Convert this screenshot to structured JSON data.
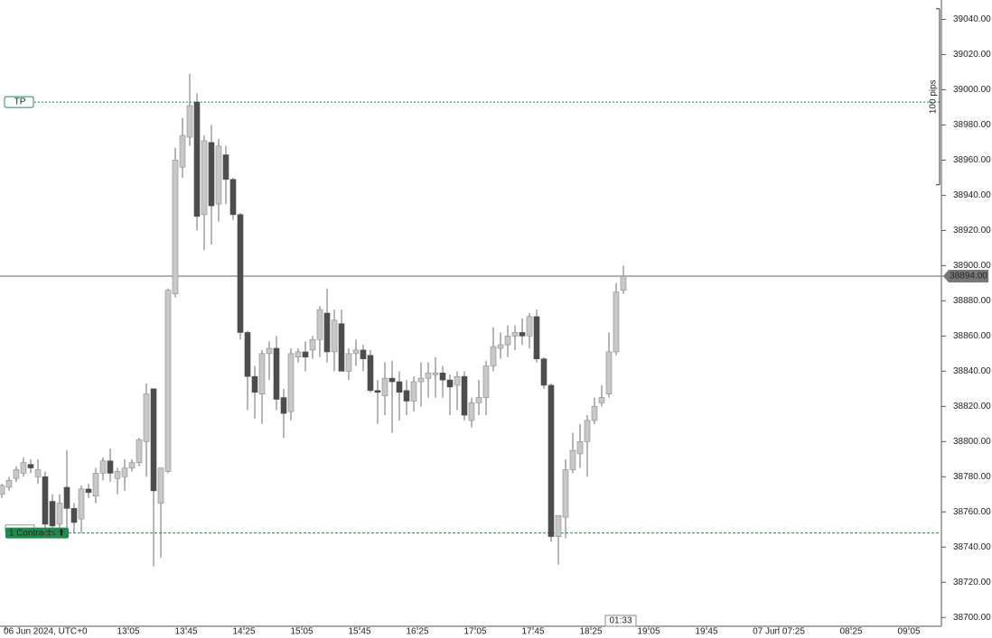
{
  "chart_data": {
    "type": "candlestick",
    "categories": [
      "06 Jun 2024, UTC+0",
      null,
      null,
      null,
      null,
      null,
      null,
      null,
      null,
      null,
      null,
      null,
      null,
      null,
      null,
      null,
      null,
      "13:05",
      null,
      null,
      null,
      null,
      null,
      null,
      null,
      "13:45",
      null,
      null,
      null,
      null,
      null,
      null,
      null,
      "14:25",
      null,
      null,
      null,
      null,
      null,
      null,
      null,
      "15:05",
      null,
      null,
      null,
      null,
      null,
      null,
      null,
      "15:45",
      null,
      null,
      null,
      null,
      null,
      null,
      null,
      "16:25",
      null,
      null,
      null,
      null,
      null,
      null,
      null,
      "17:05",
      null,
      null,
      null,
      null,
      null,
      null,
      null,
      "17:45",
      null,
      null,
      null,
      null,
      null,
      null,
      null,
      "18:25",
      null,
      null,
      null,
      null,
      null,
      null,
      null,
      "19:05",
      null,
      null,
      null,
      null,
      null,
      null,
      null,
      "19:45",
      null,
      null,
      null,
      null,
      null,
      null,
      null,
      null,
      null,
      "07 Jun 07:25",
      null,
      null,
      null,
      null,
      null,
      null,
      null,
      null,
      null,
      "08:25",
      null,
      null,
      null,
      null,
      null,
      null,
      null,
      "09:05",
      null,
      null,
      null,
      null
    ],
    "open": [
      38770,
      38774,
      38779,
      38782,
      38787,
      38780,
      38780,
      38766,
      38753,
      38774,
      38762,
      38756,
      38773,
      38769,
      38782,
      38789,
      38779,
      38780,
      38785,
      38788,
      38800,
      38830,
      38765,
      38783,
      38884,
      38956,
      38973,
      38993,
      38929,
      38970,
      38935,
      38963,
      38949,
      38929,
      38862,
      38837,
      38827,
      38850,
      38853,
      38825,
      38817,
      38848,
      38851,
      38852,
      38858,
      38873,
      38851,
      38867,
      38840,
      38850,
      38852,
      38849,
      38829,
      38826,
      38836,
      38834,
      38829,
      38823,
      38834,
      38836,
      38838,
      38839,
      38835,
      38832,
      38837,
      38812,
      38822,
      38825,
      38843,
      38853,
      38855,
      38860,
      38862,
      38860,
      38871,
      38847,
      38832,
      38746,
      38757,
      38784,
      38793,
      38800,
      38812,
      38822,
      38827,
      38851,
      38886,
      null,
      null,
      null,
      null,
      null,
      null,
      null,
      null,
      null,
      null,
      null,
      null,
      null,
      null,
      null,
      null,
      null,
      null,
      null,
      null,
      null,
      null,
      null,
      null,
      null,
      null,
      null,
      null,
      null,
      null,
      null,
      null,
      null,
      null,
      null,
      null,
      null,
      null,
      null,
      null,
      null,
      null,
      null
    ],
    "high": [
      38776,
      38780,
      38786,
      38791,
      38790,
      38790,
      38783,
      38770,
      38770,
      38795,
      38765,
      38775,
      38776,
      38785,
      38791,
      38796,
      38785,
      38790,
      38790,
      38802,
      38833,
      38830,
      38785,
      38887,
      38967,
      38984,
      39009,
      38998,
      38974,
      38980,
      38972,
      38968,
      38950,
      38930,
      38863,
      38843,
      38852,
      38857,
      38860,
      38830,
      38853,
      38853,
      38857,
      38860,
      38877,
      38887,
      38875,
      38875,
      38853,
      38858,
      38855,
      38852,
      38835,
      38845,
      38846,
      38840,
      38835,
      38837,
      38845,
      38845,
      38848,
      38843,
      38838,
      38840,
      38840,
      38825,
      38835,
      38846,
      38865,
      38862,
      38866,
      38866,
      38870,
      38873,
      38875,
      38848,
      38833,
      38758,
      38790,
      38805,
      38810,
      38815,
      38825,
      38832,
      38862,
      38890,
      38900,
      null,
      null,
      null,
      null,
      null,
      null,
      null,
      null,
      null,
      null,
      null,
      null,
      null,
      null,
      null,
      null,
      null,
      null,
      null,
      null,
      null,
      null,
      null,
      null,
      null,
      null,
      null,
      null,
      null,
      null,
      null,
      null,
      null,
      null,
      null,
      null,
      null,
      null,
      null,
      null,
      null,
      null,
      null
    ],
    "low": [
      38768,
      38772,
      38777,
      38780,
      38782,
      38776,
      38745,
      38745,
      38750,
      38748,
      38748,
      38748,
      38768,
      38765,
      38778,
      38777,
      38770,
      38772,
      38783,
      38786,
      38780,
      38729,
      38734,
      38782,
      38882,
      38950,
      38968,
      38920,
      38909,
      38912,
      38925,
      38935,
      38926,
      38858,
      38818,
      38813,
      38810,
      38835,
      38818,
      38802,
      38812,
      38845,
      38840,
      38847,
      38848,
      38845,
      38840,
      38840,
      38835,
      38843,
      38840,
      38828,
      38810,
      38815,
      38805,
      38812,
      38815,
      38817,
      38820,
      38825,
      38825,
      38825,
      38815,
      38818,
      38812,
      38808,
      38815,
      38815,
      38840,
      38847,
      38848,
      38852,
      38855,
      38853,
      38845,
      38830,
      38743,
      38730,
      38745,
      38782,
      38785,
      38780,
      38810,
      38820,
      38825,
      38849,
      38884,
      null,
      null,
      null,
      null,
      null,
      null,
      null,
      null,
      null,
      null,
      null,
      null,
      null,
      null,
      null,
      null,
      null,
      null,
      null,
      null,
      null,
      null,
      null,
      null,
      null,
      null,
      null,
      null,
      null,
      null,
      null,
      null,
      null,
      null,
      null,
      null,
      null,
      null,
      null,
      null,
      null,
      null,
      null
    ],
    "close": [
      38775,
      38778,
      38784,
      38788,
      38785,
      38784,
      38753,
      38752,
      38765,
      38762,
      38754,
      38773,
      38771,
      38782,
      38789,
      38782,
      38783,
      38785,
      38788,
      38801,
      38827,
      38772,
      38785,
      38886,
      38960,
      38974,
      38991,
      38928,
      38971,
      38934,
      38968,
      38949,
      38929,
      38862,
      38837,
      38828,
      38850,
      38853,
      38824,
      38816,
      38850,
      38851,
      38848,
      38858,
      38875,
      38851,
      38869,
      38840,
      38850,
      38852,
      38847,
      38829,
      38828,
      38836,
      38834,
      38828,
      38823,
      38834,
      38836,
      38839,
      38839,
      38835,
      38831,
      38837,
      38815,
      38822,
      38825,
      38843,
      38854,
      38855,
      38860,
      38862,
      38860,
      38871,
      38847,
      38832,
      38746,
      38758,
      38784,
      38795,
      38800,
      38812,
      38820,
      38825,
      38851,
      38885,
      38894,
      null,
      null,
      null,
      null,
      null,
      null,
      null,
      null,
      null,
      null,
      null,
      null,
      null,
      null,
      null,
      null,
      null,
      null,
      null,
      null,
      null,
      null,
      null,
      null,
      null,
      null,
      null,
      null,
      null,
      null,
      null,
      null,
      null,
      null,
      null,
      null,
      null,
      null,
      null,
      null,
      null,
      null,
      null
    ],
    "up_color": "#c8c8c8",
    "down_color": "#4d4d4d",
    "wick_color": "#6b6b6b",
    "ylim": [
      38695,
      39051
    ],
    "yticks": [
      {
        "value": 38700,
        "label": "38700.00"
      },
      {
        "value": 38720,
        "label": "38720.00"
      },
      {
        "value": 38740,
        "label": "38740.00"
      },
      {
        "value": 38760,
        "label": "38760.00"
      },
      {
        "value": 38780,
        "label": "38780.00"
      },
      {
        "value": 38800,
        "label": "38800.00"
      },
      {
        "value": 38820,
        "label": "38820.00"
      },
      {
        "value": 38840,
        "label": "38840.00"
      },
      {
        "value": 38860,
        "label": "38860.00"
      },
      {
        "value": 38880,
        "label": "38880.00"
      },
      {
        "value": 38900,
        "label": "38900.00"
      },
      {
        "value": 38920,
        "label": "38920.00"
      },
      {
        "value": 38940,
        "label": "38940.00"
      },
      {
        "value": 38960,
        "label": "38960.00"
      },
      {
        "value": 38980,
        "label": "38980.00"
      },
      {
        "value": 39000,
        "label": "39000.00"
      },
      {
        "value": 39020,
        "label": "39020.00"
      },
      {
        "value": 39040,
        "label": "39040.00"
      }
    ],
    "take_profit": {
      "label": "TP",
      "value": 38993
    },
    "position": {
      "label": "1 Contracts ⬆",
      "value": 38748
    },
    "last_price": {
      "value": 38894,
      "label": "38894.00"
    },
    "ruler": {
      "label": "100 pips",
      "from": 38946,
      "to": 39046
    },
    "timer": "01:33"
  }
}
